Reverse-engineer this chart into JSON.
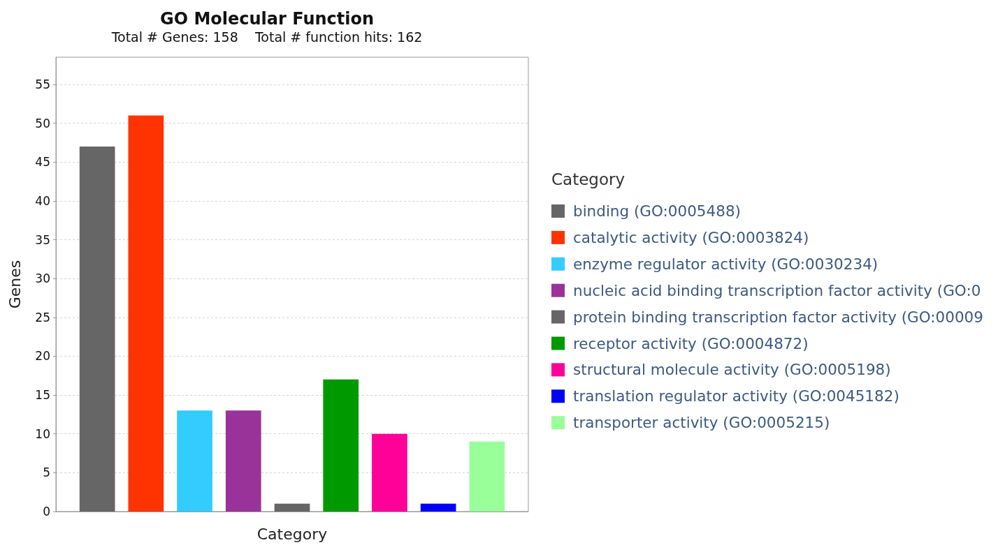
{
  "chart_data": {
    "type": "bar",
    "title": "GO Molecular Function",
    "subtitle": "Total # Genes: 158    Total # function hits: 162",
    "xlabel": "Category",
    "ylabel": "Genes",
    "legend_title": "Category",
    "categories": [
      null
    ],
    "series": [
      {
        "name": "binding (GO:0005488)",
        "color": "#666666",
        "values": [
          47
        ]
      },
      {
        "name": "catalytic activity (GO:0003824)",
        "color": "#ff3300",
        "values": [
          51
        ]
      },
      {
        "name": "enzyme regulator activity (GO:0030234)",
        "color": "#33ccff",
        "values": [
          13
        ]
      },
      {
        "name": "nucleic acid binding transcription factor activity (GO:0",
        "color": "#993399",
        "values": [
          13
        ]
      },
      {
        "name": "protein binding transcription factor activity (GO:00009",
        "color": "#666666",
        "values": [
          1
        ]
      },
      {
        "name": "receptor activity (GO:0004872)",
        "color": "#009900",
        "values": [
          17
        ]
      },
      {
        "name": "structural molecule activity (GO:0005198)",
        "color": "#ff0099",
        "values": [
          10
        ]
      },
      {
        "name": "translation regulator activity (GO:0045182)",
        "color": "#0000ff",
        "values": [
          1
        ]
      },
      {
        "name": "transporter activity (GO:0005215)",
        "color": "#99ff99",
        "values": [
          9
        ]
      }
    ],
    "ylim": [
      0,
      58.5
    ],
    "yticks": [
      0,
      5,
      10,
      15,
      20,
      25,
      30,
      35,
      40,
      45,
      50,
      55
    ],
    "grid": "y",
    "legend": "right"
  }
}
